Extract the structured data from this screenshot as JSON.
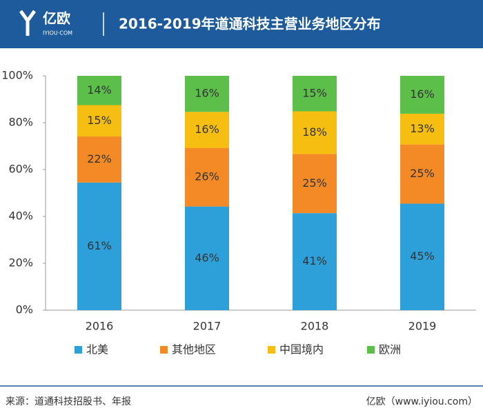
{
  "header": {
    "logo": "亿欧",
    "logo_sub": "IYIOU·COM"
  },
  "chart_data": {
    "type": "bar",
    "stacked": "percent",
    "title": "2016-2019年道通科技主营业务地区分布",
    "categories": [
      "2016",
      "2017",
      "2018",
      "2019"
    ],
    "series": [
      {
        "name": "北美",
        "color": "#2d9fd9",
        "values": [
          61,
          46,
          41,
          45
        ],
        "value_labels": [
          "61%",
          "46%",
          "41%",
          "45%"
        ]
      },
      {
        "name": "其他地区",
        "color": "#f38a25",
        "values": [
          22,
          26,
          25,
          25
        ],
        "value_labels": [
          "22%",
          "26%",
          "25%",
          "25%"
        ]
      },
      {
        "name": "中国境内",
        "color": "#f6be10",
        "values": [
          15,
          16,
          18,
          13
        ],
        "value_labels": [
          "15%",
          "16%",
          "18%",
          "13%"
        ]
      },
      {
        "name": "欧洲",
        "color": "#5cbf4a",
        "values": [
          14,
          16,
          15,
          16
        ],
        "value_labels": [
          "14%",
          "16%",
          "15%",
          "16%"
        ]
      }
    ],
    "ylim": [
      0,
      100
    ],
    "yticks": [
      {
        "value": 0,
        "label": "0%"
      },
      {
        "value": 20,
        "label": "20%"
      },
      {
        "value": 40,
        "label": "40%"
      },
      {
        "value": 60,
        "label": "60%"
      },
      {
        "value": 80,
        "label": "80%"
      },
      {
        "value": 100,
        "label": "100%"
      }
    ],
    "legend": "bottom"
  },
  "footer": {
    "source": "来源：道通科技招股书、年报",
    "credit": "亿欧（www.iyiou.com）"
  }
}
